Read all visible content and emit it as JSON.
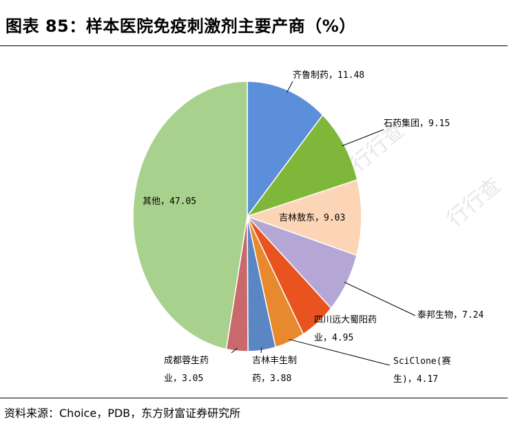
{
  "title": "图表 85：样本医院免疫刺激剂主要产商（%）",
  "source": "资料来源：Choice，PDB，东方财富证券研究所",
  "watermark": "行行查",
  "watermark_sub": "HangHangCha",
  "chart_data": {
    "type": "pie",
    "title": "图表 85：样本医院免疫刺激剂主要产商（%）",
    "slices": [
      {
        "name": "齐鲁制药",
        "value": 11.48,
        "color": "#5b8fd9",
        "label_lines": [
          "齐鲁制药，11.48"
        ]
      },
      {
        "name": "石药集团",
        "value": 9.15,
        "color": "#7fb73a",
        "label_lines": [
          "石药集团，9.15"
        ]
      },
      {
        "name": "吉林敖东",
        "value": 9.03,
        "color": "#fbd5b5",
        "label_lines": [
          "吉林敖东，9.03"
        ]
      },
      {
        "name": "泰邦生物",
        "value": 7.24,
        "color": "#b4a7d6",
        "label_lines": [
          "泰邦生物，7.24"
        ]
      },
      {
        "name": "四川远大蜀阳药业",
        "value": 4.95,
        "color": "#e8531f",
        "label_lines": [
          "四川远大蜀阳药",
          "业，4.95"
        ]
      },
      {
        "name": "SciClone(赛生)",
        "value": 4.17,
        "color": "#e9892e",
        "label_lines": [
          "SciClone(赛",
          "生)，4.17"
        ]
      },
      {
        "name": "吉林丰生制药",
        "value": 3.88,
        "color": "#5b86c4",
        "label_lines": [
          "吉林丰生制",
          "药，3.88"
        ]
      },
      {
        "name": "成都蓉生药业",
        "value": 3.05,
        "color": "#c9696b",
        "label_lines": [
          "成都蓉生药",
          "业，3.05"
        ]
      },
      {
        "name": "其他",
        "value": 47.05,
        "color": "#a9d18e",
        "label_lines": [
          "其他，47.05"
        ]
      }
    ]
  }
}
